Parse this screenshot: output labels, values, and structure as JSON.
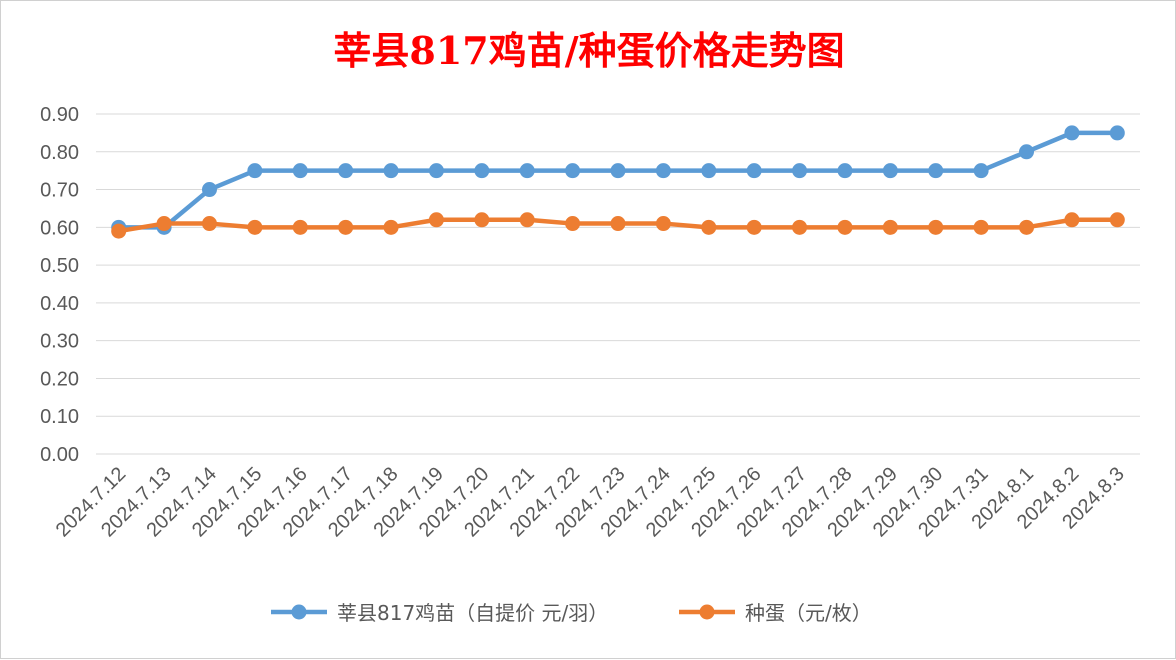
{
  "chart_data": {
    "type": "line",
    "title": "莘县817鸡苗/种蛋价格走势图",
    "title_color": "#ff0000",
    "categories": [
      "2024.7.12",
      "2024.7.13",
      "2024.7.14",
      "2024.7.15",
      "2024.7.16",
      "2024.7.17",
      "2024.7.18",
      "2024.7.19",
      "2024.7.20",
      "2024.7.21",
      "2024.7.22",
      "2024.7.23",
      "2024.7.24",
      "2024.7.25",
      "2024.7.26",
      "2024.7.27",
      "2024.7.28",
      "2024.7.29",
      "2024.7.30",
      "2024.7.31",
      "2024.8.1",
      "2024.8.2",
      "2024.8.3"
    ],
    "yticks": [
      "0.00",
      "0.10",
      "0.20",
      "0.30",
      "0.40",
      "0.50",
      "0.60",
      "0.70",
      "0.80",
      "0.90"
    ],
    "ylim": [
      0,
      0.9
    ],
    "grid": true,
    "legend_position": "bottom",
    "series": [
      {
        "name": "莘县817鸡苗（自提价 元/羽）",
        "color": "#5b9bd5",
        "values": [
          0.6,
          0.6,
          0.7,
          0.75,
          0.75,
          0.75,
          0.75,
          0.75,
          0.75,
          0.75,
          0.75,
          0.75,
          0.75,
          0.75,
          0.75,
          0.75,
          0.75,
          0.75,
          0.75,
          0.75,
          0.8,
          0.85,
          0.85
        ]
      },
      {
        "name": "种蛋（元/枚）",
        "color": "#ed7d31",
        "values": [
          0.59,
          0.61,
          0.61,
          0.6,
          0.6,
          0.6,
          0.6,
          0.62,
          0.62,
          0.62,
          0.61,
          0.61,
          0.61,
          0.6,
          0.6,
          0.6,
          0.6,
          0.6,
          0.6,
          0.6,
          0.6,
          0.62,
          0.62
        ]
      }
    ]
  }
}
